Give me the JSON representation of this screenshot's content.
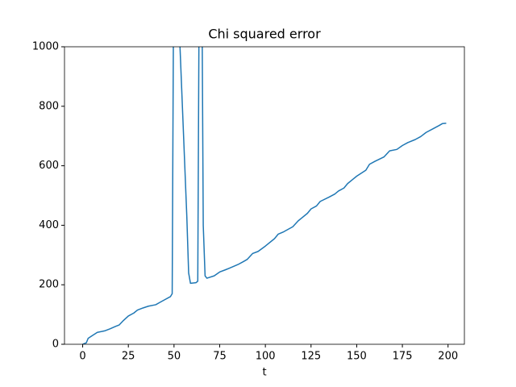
{
  "chart_data": {
    "type": "line",
    "title": "Chi squared error",
    "x_label": "t",
    "x": [
      0,
      2,
      3,
      5,
      8,
      12,
      15,
      18,
      20,
      22,
      25,
      28,
      30,
      33,
      36,
      40,
      42,
      45,
      48,
      49,
      50,
      57,
      58,
      59,
      62,
      63,
      64,
      65,
      66,
      67,
      68,
      72,
      75,
      78,
      80,
      85,
      88,
      90,
      93,
      96,
      100,
      105,
      107,
      110,
      115,
      118,
      120,
      123,
      125,
      128,
      130,
      135,
      138,
      140,
      143,
      145,
      148,
      150,
      155,
      157,
      160,
      165,
      168,
      172,
      175,
      178,
      182,
      185,
      188,
      192,
      195,
      197,
      199
    ],
    "series": [
      {
        "name": "chi squared error",
        "color": "#1f77b4",
        "values": [
          0,
          5,
          20,
          28,
          40,
          45,
          52,
          60,
          65,
          78,
          95,
          105,
          115,
          122,
          128,
          133,
          140,
          150,
          160,
          170,
          1500,
          430,
          240,
          205,
          207,
          212,
          1500,
          1500,
          400,
          230,
          222,
          230,
          243,
          250,
          255,
          268,
          278,
          285,
          305,
          312,
          330,
          355,
          370,
          378,
          395,
          415,
          425,
          440,
          455,
          465,
          480,
          495,
          505,
          515,
          525,
          540,
          555,
          565,
          585,
          605,
          615,
          630,
          650,
          655,
          668,
          678,
          688,
          698,
          712,
          725,
          735,
          742,
          743
        ]
      }
    ],
    "xlim": [
      -9.95,
      208.95
    ],
    "xticks": [
      0,
      25,
      50,
      75,
      100,
      125,
      150,
      175,
      200
    ],
    "ylim": [
      0,
      1000
    ],
    "yticks": [
      0,
      200,
      400,
      600,
      800,
      1000
    ],
    "grid": false
  }
}
